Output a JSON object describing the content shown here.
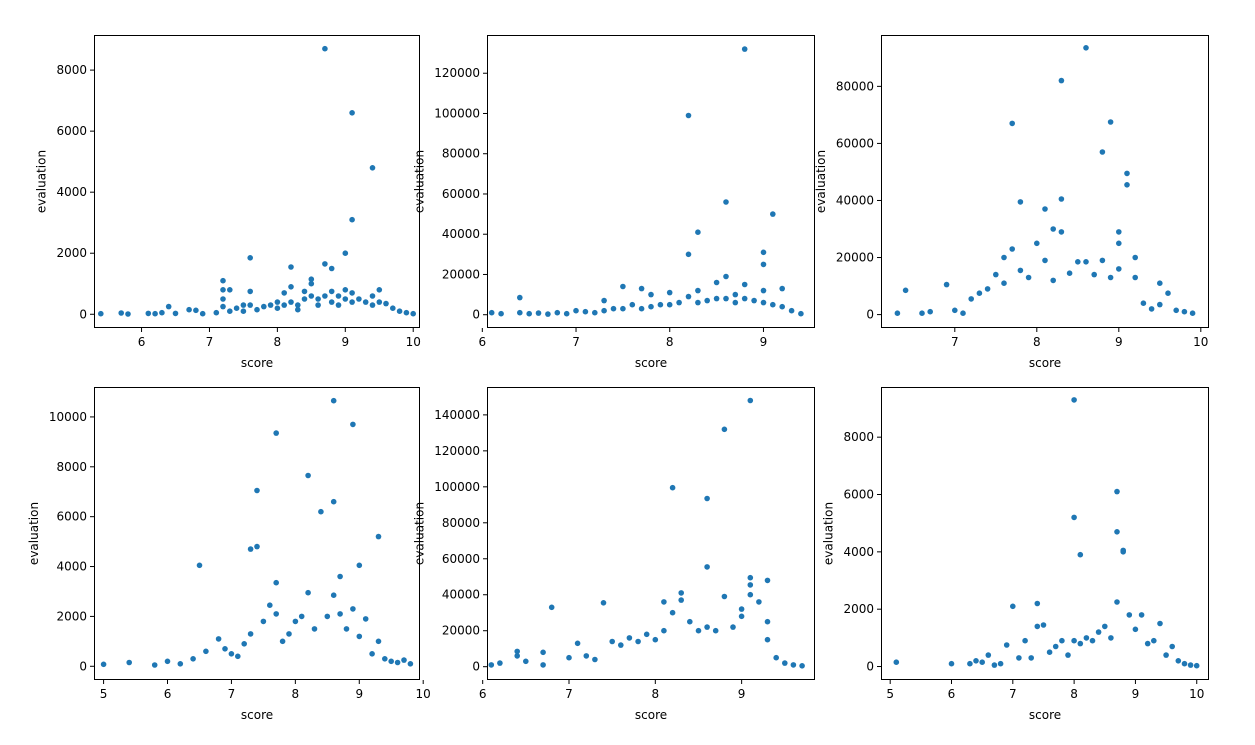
{
  "chart_data": [
    {
      "type": "scatter",
      "xlabel": "score",
      "ylabel": "evaluation",
      "xlim": [
        5.3,
        10.1
      ],
      "ylim": [
        -450,
        9150
      ],
      "xticks": [
        6,
        7,
        8,
        9,
        10
      ],
      "yticks": [
        0,
        2000,
        4000,
        6000,
        8000
      ],
      "color": "#1f77b4",
      "points": [
        [
          5.4,
          20
        ],
        [
          5.7,
          40
        ],
        [
          5.8,
          10
        ],
        [
          6.1,
          30
        ],
        [
          6.2,
          20
        ],
        [
          6.3,
          50
        ],
        [
          6.4,
          250
        ],
        [
          6.5,
          30
        ],
        [
          6.7,
          150
        ],
        [
          6.8,
          130
        ],
        [
          6.9,
          20
        ],
        [
          7.1,
          50
        ],
        [
          7.2,
          1100
        ],
        [
          7.2,
          800
        ],
        [
          7.2,
          500
        ],
        [
          7.2,
          250
        ],
        [
          7.3,
          800
        ],
        [
          7.3,
          100
        ],
        [
          7.4,
          200
        ],
        [
          7.5,
          300
        ],
        [
          7.5,
          100
        ],
        [
          7.6,
          1850
        ],
        [
          7.6,
          750
        ],
        [
          7.6,
          300
        ],
        [
          7.7,
          150
        ],
        [
          7.8,
          250
        ],
        [
          7.9,
          300
        ],
        [
          8.0,
          400
        ],
        [
          8.0,
          200
        ],
        [
          8.1,
          700
        ],
        [
          8.1,
          300
        ],
        [
          8.2,
          1550
        ],
        [
          8.2,
          900
        ],
        [
          8.2,
          400
        ],
        [
          8.3,
          300
        ],
        [
          8.3,
          150
        ],
        [
          8.4,
          750
        ],
        [
          8.4,
          500
        ],
        [
          8.5,
          1150
        ],
        [
          8.5,
          1000
        ],
        [
          8.5,
          600
        ],
        [
          8.6,
          500
        ],
        [
          8.6,
          300
        ],
        [
          8.7,
          8700
        ],
        [
          8.7,
          1650
        ],
        [
          8.7,
          600
        ],
        [
          8.8,
          1500
        ],
        [
          8.8,
          750
        ],
        [
          8.8,
          400
        ],
        [
          8.9,
          600
        ],
        [
          8.9,
          300
        ],
        [
          9.0,
          2000
        ],
        [
          9.0,
          800
        ],
        [
          9.0,
          500
        ],
        [
          9.1,
          6600
        ],
        [
          9.1,
          3100
        ],
        [
          9.1,
          700
        ],
        [
          9.1,
          400
        ],
        [
          9.2,
          500
        ],
        [
          9.3,
          400
        ],
        [
          9.4,
          4800
        ],
        [
          9.4,
          600
        ],
        [
          9.4,
          300
        ],
        [
          9.5,
          800
        ],
        [
          9.5,
          400
        ],
        [
          9.6,
          350
        ],
        [
          9.7,
          200
        ],
        [
          9.8,
          100
        ],
        [
          9.9,
          50
        ],
        [
          10.0,
          20
        ]
      ]
    },
    {
      "type": "scatter",
      "xlabel": "score",
      "ylabel": "evaluation",
      "xlim": [
        6.05,
        9.55
      ],
      "ylim": [
        -6600,
        139000
      ],
      "xticks": [
        6,
        7,
        8,
        9
      ],
      "yticks": [
        0,
        20000,
        40000,
        60000,
        80000,
        100000,
        120000
      ],
      "color": "#1f77b4",
      "points": [
        [
          6.1,
          1000
        ],
        [
          6.2,
          500
        ],
        [
          6.4,
          8500
        ],
        [
          6.4,
          1000
        ],
        [
          6.5,
          500
        ],
        [
          6.6,
          800
        ],
        [
          6.7,
          300
        ],
        [
          6.8,
          1000
        ],
        [
          6.9,
          500
        ],
        [
          7.0,
          2000
        ],
        [
          7.1,
          1500
        ],
        [
          7.2,
          1000
        ],
        [
          7.3,
          7000
        ],
        [
          7.3,
          2000
        ],
        [
          7.4,
          3000
        ],
        [
          7.5,
          14000
        ],
        [
          7.5,
          3000
        ],
        [
          7.6,
          5000
        ],
        [
          7.7,
          13000
        ],
        [
          7.7,
          3000
        ],
        [
          7.8,
          10000
        ],
        [
          7.8,
          4000
        ],
        [
          7.9,
          5000
        ],
        [
          8.0,
          11000
        ],
        [
          8.0,
          5000
        ],
        [
          8.1,
          6000
        ],
        [
          8.2,
          99000
        ],
        [
          8.2,
          30000
        ],
        [
          8.2,
          9000
        ],
        [
          8.3,
          41000
        ],
        [
          8.3,
          12000
        ],
        [
          8.3,
          6000
        ],
        [
          8.4,
          7000
        ],
        [
          8.5,
          16000
        ],
        [
          8.5,
          8000
        ],
        [
          8.6,
          56000
        ],
        [
          8.6,
          19000
        ],
        [
          8.6,
          8000
        ],
        [
          8.7,
          10000
        ],
        [
          8.7,
          6000
        ],
        [
          8.8,
          132000
        ],
        [
          8.8,
          15000
        ],
        [
          8.8,
          8000
        ],
        [
          8.9,
          7000
        ],
        [
          9.0,
          31000
        ],
        [
          9.0,
          25000
        ],
        [
          9.0,
          12000
        ],
        [
          9.0,
          6000
        ],
        [
          9.1,
          50000
        ],
        [
          9.1,
          5000
        ],
        [
          9.2,
          13000
        ],
        [
          9.2,
          4000
        ],
        [
          9.3,
          2000
        ],
        [
          9.4,
          500
        ]
      ]
    },
    {
      "type": "scatter",
      "xlabel": "score",
      "ylabel": "evaluation",
      "xlim": [
        6.1,
        10.1
      ],
      "ylim": [
        -4700,
        98000
      ],
      "xticks": [
        7,
        8,
        9,
        10
      ],
      "yticks": [
        0,
        20000,
        40000,
        60000,
        80000
      ],
      "color": "#1f77b4",
      "points": [
        [
          6.3,
          500
        ],
        [
          6.4,
          8500
        ],
        [
          6.6,
          500
        ],
        [
          6.7,
          1000
        ],
        [
          6.9,
          10500
        ],
        [
          7.0,
          1500
        ],
        [
          7.1,
          500
        ],
        [
          7.2,
          5500
        ],
        [
          7.3,
          7500
        ],
        [
          7.4,
          9000
        ],
        [
          7.5,
          14000
        ],
        [
          7.6,
          20000
        ],
        [
          7.6,
          11000
        ],
        [
          7.7,
          67000
        ],
        [
          7.7,
          23000
        ],
        [
          7.8,
          39500
        ],
        [
          7.8,
          15500
        ],
        [
          7.9,
          13000
        ],
        [
          8.0,
          25000
        ],
        [
          8.1,
          37000
        ],
        [
          8.1,
          19000
        ],
        [
          8.2,
          30000
        ],
        [
          8.2,
          12000
        ],
        [
          8.3,
          82000
        ],
        [
          8.3,
          40500
        ],
        [
          8.3,
          29000
        ],
        [
          8.4,
          14500
        ],
        [
          8.5,
          18500
        ],
        [
          8.6,
          93500
        ],
        [
          8.6,
          18500
        ],
        [
          8.7,
          14000
        ],
        [
          8.8,
          57000
        ],
        [
          8.8,
          19000
        ],
        [
          8.9,
          67500
        ],
        [
          8.9,
          13000
        ],
        [
          9.0,
          29000
        ],
        [
          9.0,
          25000
        ],
        [
          9.0,
          16000
        ],
        [
          9.1,
          49500
        ],
        [
          9.1,
          45500
        ],
        [
          9.2,
          20000
        ],
        [
          9.2,
          13000
        ],
        [
          9.3,
          4000
        ],
        [
          9.4,
          2000
        ],
        [
          9.5,
          11000
        ],
        [
          9.5,
          3500
        ],
        [
          9.6,
          7500
        ],
        [
          9.7,
          1500
        ],
        [
          9.8,
          1000
        ],
        [
          9.9,
          500
        ]
      ]
    },
    {
      "type": "scatter",
      "xlabel": "score",
      "ylabel": "evaluation",
      "xlim": [
        4.85,
        9.95
      ],
      "ylim": [
        -550,
        11200
      ],
      "xticks": [
        5,
        6,
        7,
        8,
        9,
        10
      ],
      "yticks": [
        0,
        2000,
        4000,
        6000,
        8000,
        10000
      ],
      "color": "#1f77b4",
      "points": [
        [
          5.0,
          80
        ],
        [
          5.4,
          150
        ],
        [
          5.8,
          50
        ],
        [
          6.0,
          200
        ],
        [
          6.2,
          100
        ],
        [
          6.4,
          300
        ],
        [
          6.5,
          4050
        ],
        [
          6.6,
          600
        ],
        [
          6.8,
          1100
        ],
        [
          6.9,
          700
        ],
        [
          7.0,
          500
        ],
        [
          7.1,
          400
        ],
        [
          7.2,
          900
        ],
        [
          7.3,
          4700
        ],
        [
          7.3,
          1300
        ],
        [
          7.4,
          7050
        ],
        [
          7.4,
          4800
        ],
        [
          7.5,
          1800
        ],
        [
          7.6,
          2450
        ],
        [
          7.7,
          9350
        ],
        [
          7.7,
          2100
        ],
        [
          7.7,
          3350
        ],
        [
          7.8,
          1000
        ],
        [
          7.9,
          1300
        ],
        [
          8.0,
          1800
        ],
        [
          8.1,
          2000
        ],
        [
          8.2,
          7650
        ],
        [
          8.2,
          2950
        ],
        [
          8.3,
          1500
        ],
        [
          8.4,
          6200
        ],
        [
          8.5,
          2000
        ],
        [
          8.6,
          10650
        ],
        [
          8.6,
          6600
        ],
        [
          8.6,
          2850
        ],
        [
          8.7,
          3600
        ],
        [
          8.7,
          2100
        ],
        [
          8.8,
          1500
        ],
        [
          8.9,
          9700
        ],
        [
          8.9,
          2300
        ],
        [
          9.0,
          4050
        ],
        [
          9.0,
          1200
        ],
        [
          9.1,
          1900
        ],
        [
          9.2,
          500
        ],
        [
          9.3,
          5200
        ],
        [
          9.3,
          1000
        ],
        [
          9.4,
          300
        ],
        [
          9.5,
          200
        ],
        [
          9.6,
          150
        ],
        [
          9.7,
          250
        ],
        [
          9.8,
          100
        ]
      ]
    },
    {
      "type": "scatter",
      "xlabel": "score",
      "ylabel": "evaluation",
      "xlim": [
        6.05,
        9.85
      ],
      "ylim": [
        -7400,
        155500
      ],
      "xticks": [
        6,
        7,
        8,
        9
      ],
      "yticks": [
        0,
        20000,
        40000,
        60000,
        80000,
        100000,
        120000,
        140000
      ],
      "color": "#1f77b4",
      "points": [
        [
          6.1,
          1000
        ],
        [
          6.2,
          2000
        ],
        [
          6.4,
          8500
        ],
        [
          6.4,
          6000
        ],
        [
          6.5,
          3000
        ],
        [
          6.7,
          8000
        ],
        [
          6.7,
          1000
        ],
        [
          6.8,
          33000
        ],
        [
          7.0,
          5000
        ],
        [
          7.1,
          13000
        ],
        [
          7.2,
          6000
        ],
        [
          7.3,
          4000
        ],
        [
          7.4,
          35500
        ],
        [
          7.5,
          14000
        ],
        [
          7.6,
          12000
        ],
        [
          7.7,
          16000
        ],
        [
          7.8,
          14000
        ],
        [
          7.9,
          18000
        ],
        [
          8.0,
          15000
        ],
        [
          8.1,
          20000
        ],
        [
          8.1,
          36000
        ],
        [
          8.2,
          99500
        ],
        [
          8.2,
          30000
        ],
        [
          8.3,
          41000
        ],
        [
          8.3,
          37000
        ],
        [
          8.4,
          25000
        ],
        [
          8.5,
          20000
        ],
        [
          8.6,
          93500
        ],
        [
          8.6,
          55500
        ],
        [
          8.6,
          22000
        ],
        [
          8.7,
          20000
        ],
        [
          8.8,
          132000
        ],
        [
          8.8,
          39000
        ],
        [
          8.9,
          22000
        ],
        [
          9.0,
          32000
        ],
        [
          9.0,
          28000
        ],
        [
          9.1,
          148000
        ],
        [
          9.1,
          49500
        ],
        [
          9.1,
          45500
        ],
        [
          9.1,
          40000
        ],
        [
          9.2,
          36000
        ],
        [
          9.3,
          48000
        ],
        [
          9.3,
          25000
        ],
        [
          9.3,
          15000
        ],
        [
          9.4,
          5000
        ],
        [
          9.5,
          2000
        ],
        [
          9.6,
          1000
        ],
        [
          9.7,
          500
        ]
      ]
    },
    {
      "type": "scatter",
      "xlabel": "score",
      "ylabel": "evaluation",
      "xlim": [
        4.85,
        10.2
      ],
      "ylim": [
        -470,
        9750
      ],
      "xticks": [
        5,
        6,
        7,
        8,
        9,
        10
      ],
      "yticks": [
        0,
        2000,
        4000,
        6000,
        8000
      ],
      "color": "#1f77b4",
      "points": [
        [
          5.1,
          150
        ],
        [
          6.0,
          100
        ],
        [
          6.3,
          100
        ],
        [
          6.4,
          200
        ],
        [
          6.5,
          150
        ],
        [
          6.6,
          400
        ],
        [
          6.7,
          50
        ],
        [
          6.8,
          100
        ],
        [
          6.9,
          750
        ],
        [
          7.0,
          2100
        ],
        [
          7.1,
          300
        ],
        [
          7.2,
          900
        ],
        [
          7.3,
          300
        ],
        [
          7.4,
          2200
        ],
        [
          7.4,
          1400
        ],
        [
          7.5,
          1450
        ],
        [
          7.6,
          500
        ],
        [
          7.7,
          700
        ],
        [
          7.8,
          900
        ],
        [
          7.9,
          400
        ],
        [
          8.0,
          9300
        ],
        [
          8.0,
          5200
        ],
        [
          8.0,
          900
        ],
        [
          8.1,
          3900
        ],
        [
          8.1,
          800
        ],
        [
          8.2,
          1000
        ],
        [
          8.3,
          900
        ],
        [
          8.4,
          1200
        ],
        [
          8.5,
          1400
        ],
        [
          8.6,
          1000
        ],
        [
          8.7,
          6100
        ],
        [
          8.7,
          4700
        ],
        [
          8.7,
          2250
        ],
        [
          8.8,
          4050
        ],
        [
          8.8,
          4000
        ],
        [
          8.9,
          1800
        ],
        [
          9.0,
          1300
        ],
        [
          9.1,
          1800
        ],
        [
          9.2,
          800
        ],
        [
          9.3,
          900
        ],
        [
          9.4,
          1500
        ],
        [
          9.5,
          400
        ],
        [
          9.6,
          700
        ],
        [
          9.7,
          200
        ],
        [
          9.8,
          100
        ],
        [
          9.9,
          50
        ],
        [
          10.0,
          30
        ]
      ]
    }
  ]
}
